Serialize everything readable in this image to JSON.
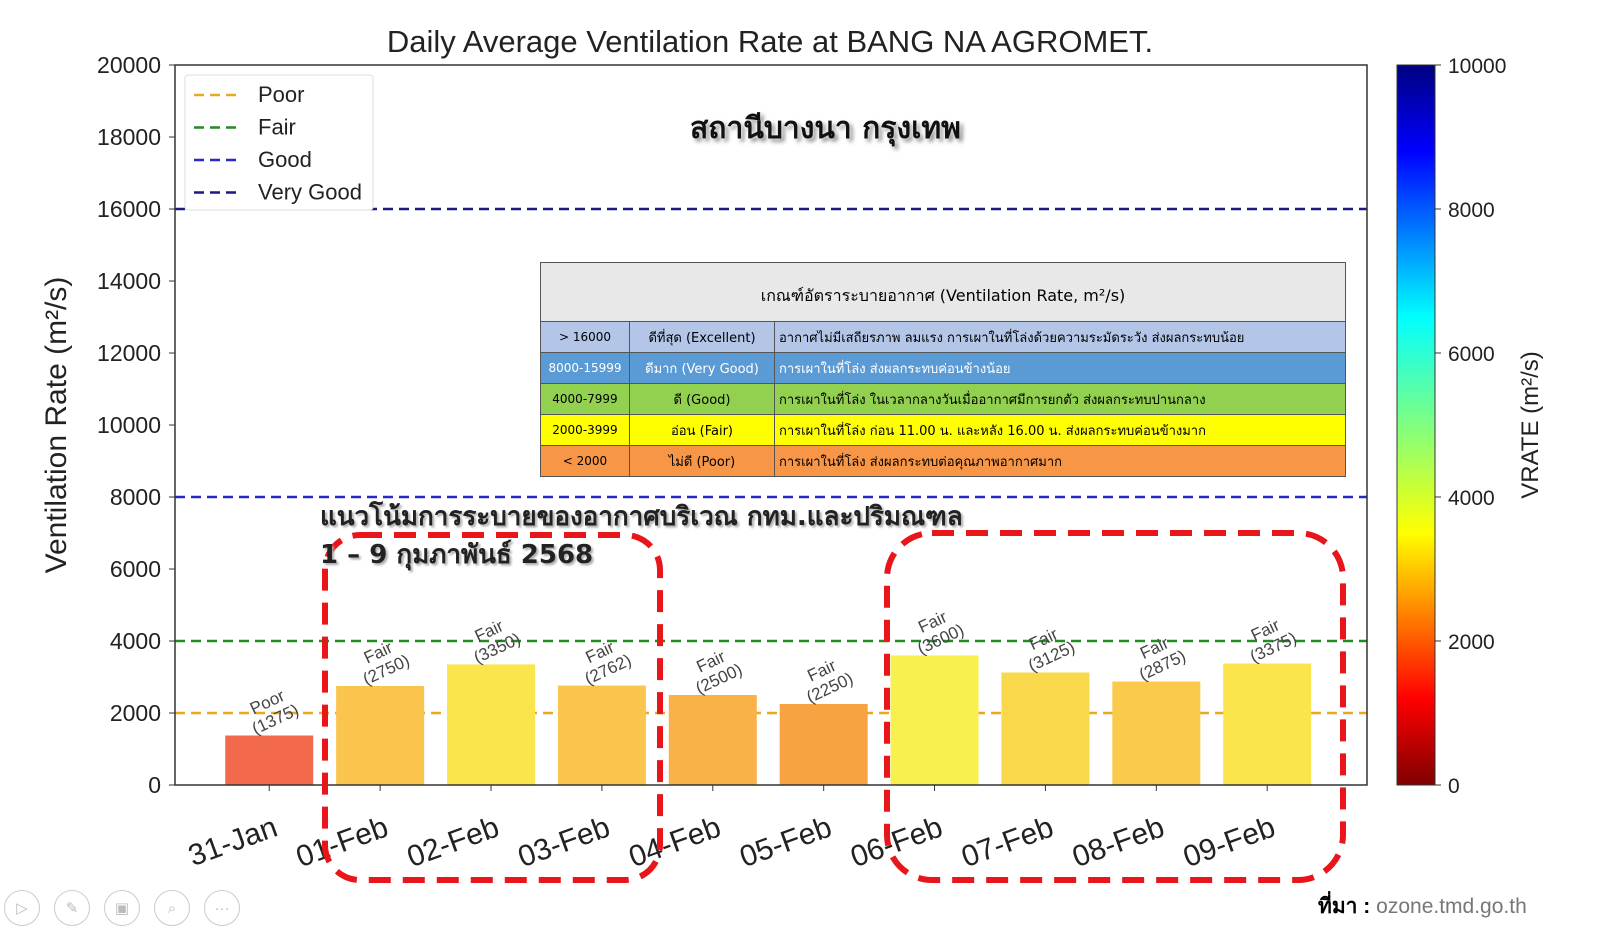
{
  "chart_data": {
    "type": "bar",
    "title": "Daily Average Ventilation Rate at BANG NA AGROMET.",
    "ylabel": "Ventilation Rate (m²/s)",
    "ylim": [
      0,
      20000
    ],
    "yticks": [
      "0",
      "2000",
      "4000",
      "6000",
      "8000",
      "10000",
      "12000",
      "14000",
      "16000",
      "18000",
      "20000"
    ],
    "categories": [
      "31-Jan",
      "01-Feb",
      "02-Feb",
      "03-Feb",
      "04-Feb",
      "05-Feb",
      "06-Feb",
      "07-Feb",
      "08-Feb",
      "09-Feb"
    ],
    "values": [
      1375,
      2750,
      3350,
      2762,
      2500,
      2250,
      3600,
      3125,
      2875,
      3375
    ],
    "labels": [
      "Poor",
      "Fair",
      "Fair",
      "Fair",
      "Fair",
      "Fair",
      "Fair",
      "Fair",
      "Fair",
      "Fair"
    ],
    "bar_colors": [
      "#f26a4b",
      "#fbc44c",
      "#fbe54c",
      "#fbc44c",
      "#f9b248",
      "#f7a342",
      "#f8f04f",
      "#fad84c",
      "#fbca4b",
      "#fbe44c"
    ],
    "thresholds": [
      {
        "name": "Poor",
        "value": 2000,
        "color": "#e8a820"
      },
      {
        "name": "Fair",
        "value": 4000,
        "color": "#228b22"
      },
      {
        "name": "Good",
        "value": 8000,
        "color": "#2828c8"
      },
      {
        "name": "Very Good",
        "value": 16000,
        "color": "#1a1a80"
      }
    ],
    "legend_position": "top-left",
    "colorbar": {
      "label": "VRATE (m²/s)",
      "range": [
        0,
        10000
      ],
      "ticks": [
        "0",
        "2000",
        "4000",
        "6000",
        "8000",
        "10000"
      ]
    }
  },
  "overlay": {
    "station_title": "สถานีบางนา กรุงเทพ",
    "trend_line1": "แนวโน้มการระบายของอากาศบริเวณ กทม.และปริมณฑล",
    "trend_line2": "1 – 9 กุมภาพันธ์ 2568",
    "source_label": "ที่มา :",
    "source_url": "ozone.tmd.go.th"
  },
  "criteria": {
    "header": "เกณฑ์อัตราระบายอากาศ (Ventilation Rate, m²/s)",
    "rows": [
      {
        "range": "> 16000",
        "level": "ดีที่สุด (Excellent)",
        "desc": "อากาศไม่มีเสถียรภาพ ลมแรง การเผาในที่โล่งด้วยความระมัดระวัง ส่งผลกระทบน้อย",
        "color": "#b4c6e7",
        "fg": "#000"
      },
      {
        "range": "8000-15999",
        "level": "ดีมาก (Very Good)",
        "desc": "การเผาในที่โล่ง ส่งผลกระทบค่อนข้างน้อย",
        "color": "#5b9bd5",
        "fg": "#fff"
      },
      {
        "range": "4000-7999",
        "level": "ดี (Good)",
        "desc": "การเผาในที่โล่ง ในเวลากลางวันเมื่ออากาศมีการยกตัว ส่งผลกระทบปานกลาง",
        "color": "#92d050",
        "fg": "#000"
      },
      {
        "range": "2000-3999",
        "level": "อ่อน (Fair)",
        "desc": "การเผาในที่โล่ง ก่อน 11.00 น. และหลัง 16.00 น. ส่งผลกระทบค่อนข้างมาก",
        "color": "#ffff00",
        "fg": "#000"
      },
      {
        "range": "< 2000",
        "level": "ไม่ดี (Poor)",
        "desc": "การเผาในที่โล่ง ส่งผลกระทบต่อคุณภาพอากาศมาก",
        "color": "#f79646",
        "fg": "#000"
      }
    ]
  },
  "toolbar": [
    "▷",
    "✎",
    "▣",
    "⌕",
    "···"
  ]
}
